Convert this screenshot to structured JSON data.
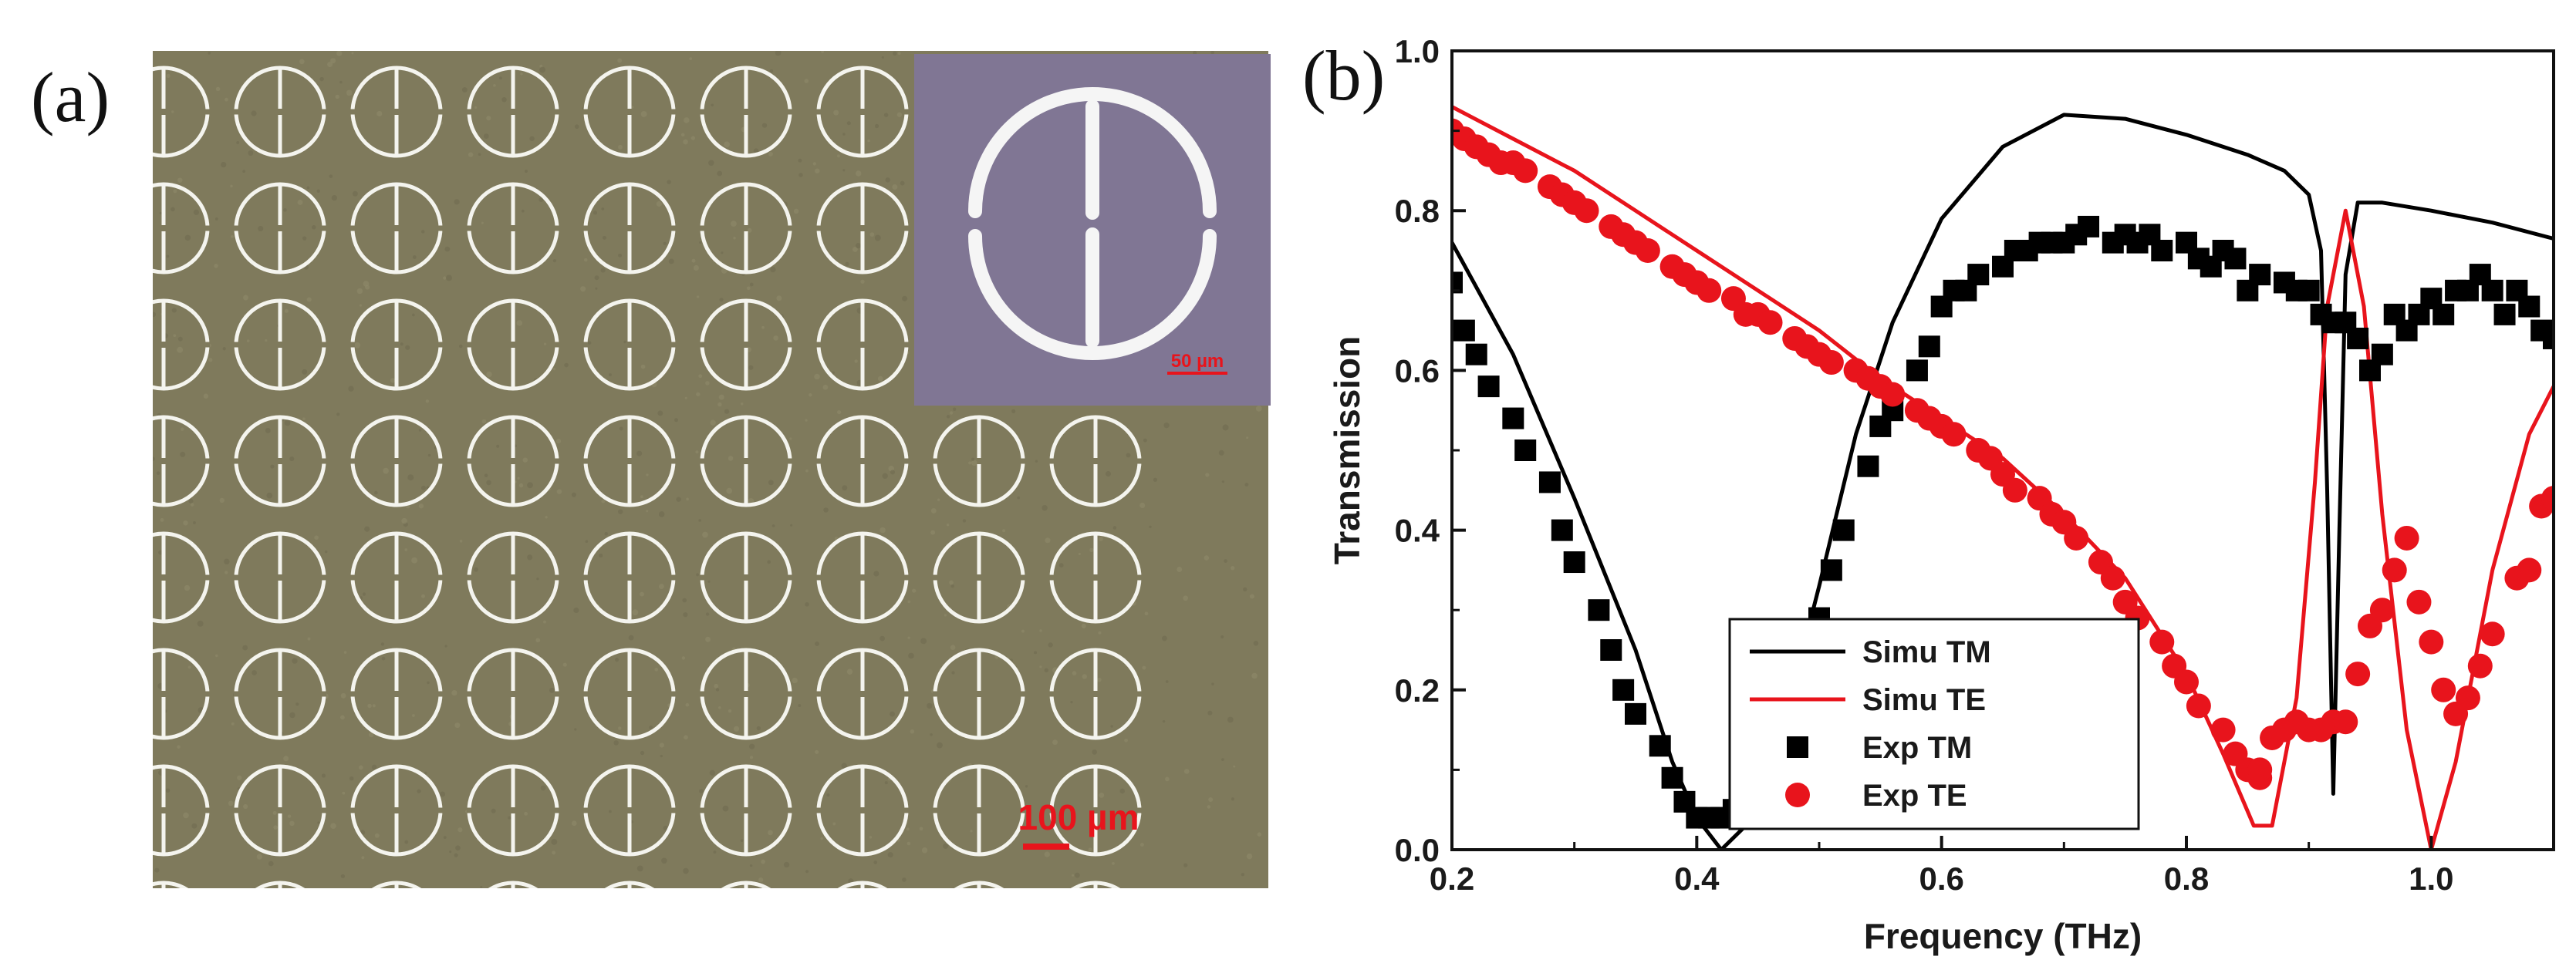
{
  "panel_a": {
    "label": "(a)",
    "scale_bar": "100 µm",
    "inset_scale_bar": "50 µm",
    "rows": 8,
    "cols": 9,
    "colors": {
      "substrate": "#7f7a5c",
      "ring": "#f4f4ee",
      "inset_bg": "#807694",
      "scale": "#e8141c"
    }
  },
  "panel_b": {
    "label": "(b)",
    "chart_data": {
      "type": "line",
      "title": "",
      "xlabel": "Frequency (THz)",
      "ylabel": "Transmission",
      "xlim": [
        0.2,
        1.1
      ],
      "ylim": [
        0.0,
        1.0
      ],
      "x_ticks": [
        "0.2",
        "0.4",
        "0.6",
        "0.8",
        "1.0"
      ],
      "y_ticks": [
        "0.0",
        "0.2",
        "0.4",
        "0.6",
        "0.8",
        "1.0"
      ],
      "legend_position": "bottom-center",
      "series": [
        {
          "name": "Simu TM",
          "style": "line",
          "color": "#000000",
          "points": [
            [
              0.2,
              0.76
            ],
            [
              0.25,
              0.62
            ],
            [
              0.3,
              0.44
            ],
            [
              0.35,
              0.25
            ],
            [
              0.38,
              0.11
            ],
            [
              0.4,
              0.04
            ],
            [
              0.42,
              0.0
            ],
            [
              0.44,
              0.03
            ],
            [
              0.47,
              0.15
            ],
            [
              0.5,
              0.33
            ],
            [
              0.53,
              0.52
            ],
            [
              0.56,
              0.66
            ],
            [
              0.6,
              0.79
            ],
            [
              0.65,
              0.88
            ],
            [
              0.7,
              0.92
            ],
            [
              0.75,
              0.915
            ],
            [
              0.8,
              0.895
            ],
            [
              0.85,
              0.87
            ],
            [
              0.88,
              0.85
            ],
            [
              0.9,
              0.82
            ],
            [
              0.91,
              0.75
            ],
            [
              0.915,
              0.45
            ],
            [
              0.92,
              0.07
            ],
            [
              0.925,
              0.4
            ],
            [
              0.93,
              0.72
            ],
            [
              0.94,
              0.81
            ],
            [
              0.96,
              0.81
            ],
            [
              1.0,
              0.8
            ],
            [
              1.05,
              0.785
            ],
            [
              1.1,
              0.765
            ]
          ]
        },
        {
          "name": "Simu TE",
          "style": "line",
          "color": "#e8141c",
          "points": [
            [
              0.2,
              0.93
            ],
            [
              0.25,
              0.89
            ],
            [
              0.3,
              0.85
            ],
            [
              0.35,
              0.8
            ],
            [
              0.4,
              0.75
            ],
            [
              0.45,
              0.7
            ],
            [
              0.5,
              0.65
            ],
            [
              0.55,
              0.59
            ],
            [
              0.6,
              0.54
            ],
            [
              0.65,
              0.49
            ],
            [
              0.7,
              0.42
            ],
            [
              0.75,
              0.34
            ],
            [
              0.8,
              0.22
            ],
            [
              0.83,
              0.12
            ],
            [
              0.855,
              0.03
            ],
            [
              0.87,
              0.03
            ],
            [
              0.89,
              0.19
            ],
            [
              0.905,
              0.46
            ],
            [
              0.915,
              0.68
            ],
            [
              0.93,
              0.8
            ],
            [
              0.945,
              0.68
            ],
            [
              0.96,
              0.42
            ],
            [
              0.98,
              0.15
            ],
            [
              1.0,
              0.0
            ],
            [
              1.02,
              0.11
            ],
            [
              1.05,
              0.35
            ],
            [
              1.08,
              0.52
            ],
            [
              1.1,
              0.58
            ]
          ]
        },
        {
          "name": "Exp TM",
          "style": "square",
          "color": "#000000",
          "points": [
            [
              0.2,
              0.71
            ],
            [
              0.21,
              0.65
            ],
            [
              0.22,
              0.62
            ],
            [
              0.23,
              0.58
            ],
            [
              0.25,
              0.54
            ],
            [
              0.26,
              0.5
            ],
            [
              0.28,
              0.46
            ],
            [
              0.29,
              0.4
            ],
            [
              0.3,
              0.36
            ],
            [
              0.32,
              0.3
            ],
            [
              0.33,
              0.25
            ],
            [
              0.34,
              0.2
            ],
            [
              0.35,
              0.17
            ],
            [
              0.37,
              0.13
            ],
            [
              0.38,
              0.09
            ],
            [
              0.39,
              0.06
            ],
            [
              0.4,
              0.04
            ],
            [
              0.41,
              0.04
            ],
            [
              0.42,
              0.04
            ],
            [
              0.43,
              0.05
            ],
            [
              0.45,
              0.08
            ],
            [
              0.47,
              0.13
            ],
            [
              0.48,
              0.17
            ],
            [
              0.49,
              0.23
            ],
            [
              0.5,
              0.29
            ],
            [
              0.51,
              0.35
            ],
            [
              0.52,
              0.4
            ],
            [
              0.54,
              0.48
            ],
            [
              0.55,
              0.53
            ],
            [
              0.56,
              0.55
            ],
            [
              0.58,
              0.6
            ],
            [
              0.59,
              0.63
            ],
            [
              0.6,
              0.68
            ],
            [
              0.61,
              0.7
            ],
            [
              0.62,
              0.7
            ],
            [
              0.63,
              0.72
            ],
            [
              0.65,
              0.73
            ],
            [
              0.66,
              0.75
            ],
            [
              0.67,
              0.75
            ],
            [
              0.68,
              0.76
            ],
            [
              0.69,
              0.76
            ],
            [
              0.7,
              0.76
            ],
            [
              0.71,
              0.77
            ],
            [
              0.72,
              0.78
            ],
            [
              0.74,
              0.76
            ],
            [
              0.75,
              0.77
            ],
            [
              0.76,
              0.76
            ],
            [
              0.77,
              0.77
            ],
            [
              0.78,
              0.75
            ],
            [
              0.8,
              0.76
            ],
            [
              0.81,
              0.74
            ],
            [
              0.82,
              0.73
            ],
            [
              0.83,
              0.75
            ],
            [
              0.84,
              0.74
            ],
            [
              0.85,
              0.7
            ],
            [
              0.86,
              0.72
            ],
            [
              0.88,
              0.71
            ],
            [
              0.89,
              0.7
            ],
            [
              0.9,
              0.7
            ],
            [
              0.91,
              0.67
            ],
            [
              0.92,
              0.66
            ],
            [
              0.93,
              0.66
            ],
            [
              0.94,
              0.64
            ],
            [
              0.95,
              0.6
            ],
            [
              0.96,
              0.62
            ],
            [
              0.97,
              0.67
            ],
            [
              0.98,
              0.65
            ],
            [
              0.99,
              0.67
            ],
            [
              1.0,
              0.69
            ],
            [
              1.01,
              0.67
            ],
            [
              1.02,
              0.7
            ],
            [
              1.03,
              0.7
            ],
            [
              1.04,
              0.72
            ],
            [
              1.05,
              0.7
            ],
            [
              1.06,
              0.67
            ],
            [
              1.07,
              0.7
            ],
            [
              1.08,
              0.68
            ],
            [
              1.09,
              0.65
            ],
            [
              1.1,
              0.64
            ]
          ]
        },
        {
          "name": "Exp TE",
          "style": "circle",
          "color": "#e8141c",
          "points": [
            [
              0.2,
              0.9
            ],
            [
              0.21,
              0.89
            ],
            [
              0.22,
              0.88
            ],
            [
              0.23,
              0.87
            ],
            [
              0.24,
              0.86
            ],
            [
              0.25,
              0.86
            ],
            [
              0.26,
              0.85
            ],
            [
              0.28,
              0.83
            ],
            [
              0.29,
              0.82
            ],
            [
              0.3,
              0.81
            ],
            [
              0.31,
              0.8
            ],
            [
              0.33,
              0.78
            ],
            [
              0.34,
              0.77
            ],
            [
              0.35,
              0.76
            ],
            [
              0.36,
              0.75
            ],
            [
              0.38,
              0.73
            ],
            [
              0.39,
              0.72
            ],
            [
              0.4,
              0.71
            ],
            [
              0.41,
              0.7
            ],
            [
              0.43,
              0.69
            ],
            [
              0.44,
              0.67
            ],
            [
              0.45,
              0.67
            ],
            [
              0.46,
              0.66
            ],
            [
              0.48,
              0.64
            ],
            [
              0.49,
              0.63
            ],
            [
              0.5,
              0.62
            ],
            [
              0.51,
              0.61
            ],
            [
              0.53,
              0.6
            ],
            [
              0.54,
              0.59
            ],
            [
              0.55,
              0.58
            ],
            [
              0.56,
              0.57
            ],
            [
              0.58,
              0.55
            ],
            [
              0.59,
              0.54
            ],
            [
              0.6,
              0.53
            ],
            [
              0.61,
              0.52
            ],
            [
              0.63,
              0.5
            ],
            [
              0.64,
              0.49
            ],
            [
              0.65,
              0.47
            ],
            [
              0.66,
              0.45
            ],
            [
              0.68,
              0.44
            ],
            [
              0.69,
              0.42
            ],
            [
              0.7,
              0.41
            ],
            [
              0.71,
              0.39
            ],
            [
              0.73,
              0.36
            ],
            [
              0.74,
              0.34
            ],
            [
              0.75,
              0.31
            ],
            [
              0.76,
              0.29
            ],
            [
              0.78,
              0.26
            ],
            [
              0.79,
              0.23
            ],
            [
              0.8,
              0.21
            ],
            [
              0.81,
              0.18
            ],
            [
              0.83,
              0.15
            ],
            [
              0.84,
              0.12
            ],
            [
              0.85,
              0.1
            ],
            [
              0.86,
              0.09
            ],
            [
              0.86,
              0.1
            ],
            [
              0.87,
              0.14
            ],
            [
              0.88,
              0.15
            ],
            [
              0.89,
              0.16
            ],
            [
              0.9,
              0.15
            ],
            [
              0.91,
              0.15
            ],
            [
              0.92,
              0.16
            ],
            [
              0.93,
              0.16
            ],
            [
              0.94,
              0.22
            ],
            [
              0.95,
              0.28
            ],
            [
              0.96,
              0.3
            ],
            [
              0.97,
              0.35
            ],
            [
              0.98,
              0.39
            ],
            [
              0.99,
              0.31
            ],
            [
              1.0,
              0.26
            ],
            [
              1.01,
              0.2
            ],
            [
              1.02,
              0.17
            ],
            [
              1.03,
              0.19
            ],
            [
              1.04,
              0.23
            ],
            [
              1.05,
              0.27
            ],
            [
              1.07,
              0.34
            ],
            [
              1.08,
              0.35
            ],
            [
              1.09,
              0.43
            ],
            [
              1.1,
              0.44
            ]
          ]
        }
      ]
    }
  }
}
